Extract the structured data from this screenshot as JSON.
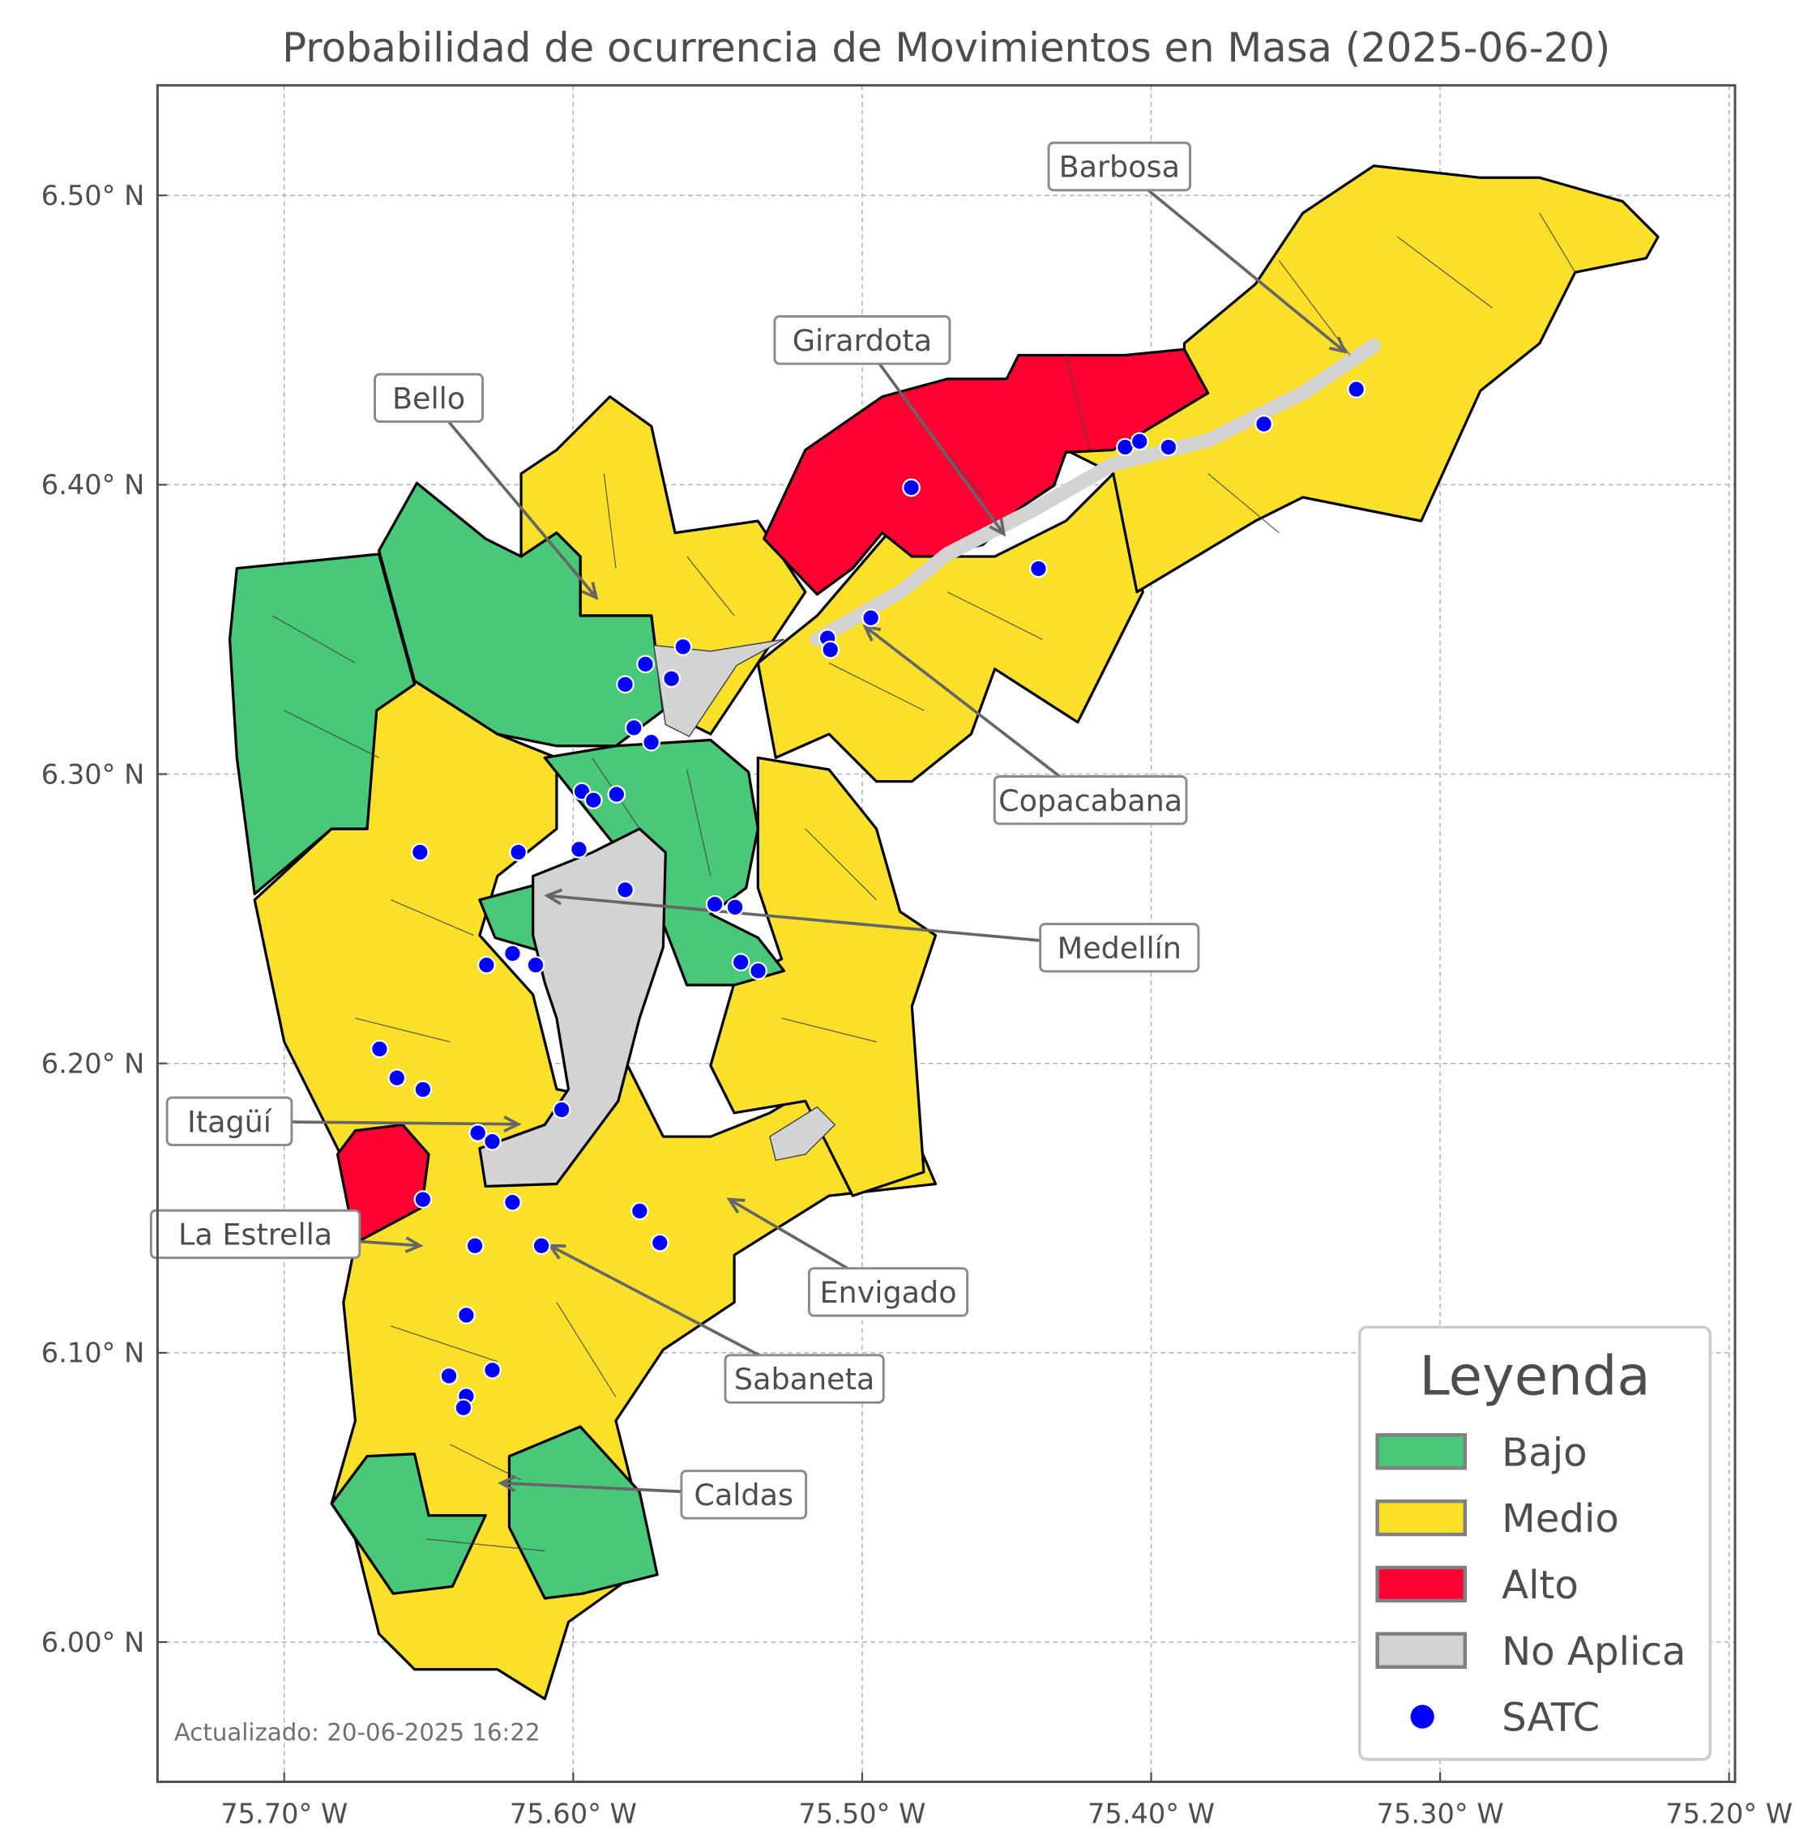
{
  "title": "Probabilidad de ocurrencia de Movimientos en Masa (2025-06-20)",
  "updated_note": "Actualizado: 20-06-2025 16:22",
  "axes": {
    "x_ticks": [
      {
        "value": -75.7,
        "label": "75.70° W"
      },
      {
        "value": -75.6,
        "label": "75.60° W"
      },
      {
        "value": -75.5,
        "label": "75.50° W"
      },
      {
        "value": -75.4,
        "label": "75.40° W"
      },
      {
        "value": -75.3,
        "label": "75.30° W"
      },
      {
        "value": -75.2,
        "label": "75.20° W"
      }
    ],
    "y_ticks": [
      {
        "value": 6.5,
        "label": "6.50° N"
      },
      {
        "value": 6.4,
        "label": "6.40° N"
      },
      {
        "value": 6.3,
        "label": "6.30° N"
      },
      {
        "value": 6.2,
        "label": "6.20° N"
      },
      {
        "value": 6.1,
        "label": "6.10° N"
      },
      {
        "value": 6.0,
        "label": "6.00° N"
      }
    ],
    "xlim": [
      -75.744,
      -75.198
    ],
    "ylim": [
      5.953,
      6.539
    ],
    "grid": true
  },
  "legend": {
    "title": "Leyenda",
    "placement": "bottom-right",
    "items": [
      {
        "label": "Bajo",
        "color": "#48c878",
        "kind": "patch"
      },
      {
        "label": "Medio",
        "color": "#fbe02a",
        "kind": "patch"
      },
      {
        "label": "Alto",
        "color": "#ff0033",
        "kind": "patch"
      },
      {
        "label": "No Aplica",
        "color": "#d3d3d3",
        "kind": "patch"
      },
      {
        "label": "SATC",
        "color": "#0000ff",
        "kind": "point"
      }
    ]
  },
  "municipalities": [
    {
      "name": "Barbosa",
      "label_at": [
        -75.411,
        6.51
      ],
      "point": [
        -75.333,
        6.446
      ]
    },
    {
      "name": "Girardota",
      "label_at": [
        -75.5,
        6.45
      ],
      "point": [
        -75.451,
        6.383
      ]
    },
    {
      "name": "Bello",
      "label_at": [
        -75.65,
        6.43
      ],
      "point": [
        -75.592,
        6.361
      ]
    },
    {
      "name": "Copacabana",
      "label_at": [
        -75.421,
        6.291
      ],
      "point": [
        -75.499,
        6.351
      ]
    },
    {
      "name": "Medellín",
      "label_at": [
        -75.411,
        6.24
      ],
      "point": [
        -75.609,
        6.258
      ]
    },
    {
      "name": "Itagüí",
      "label_at": [
        -75.719,
        6.18
      ],
      "point": [
        -75.619,
        6.179
      ]
    },
    {
      "name": "La Estrella",
      "label_at": [
        -75.71,
        6.141
      ],
      "point": [
        -75.653,
        6.137
      ]
    },
    {
      "name": "Envigado",
      "label_at": [
        -75.491,
        6.121
      ],
      "point": [
        -75.546,
        6.153
      ]
    },
    {
      "name": "Sabaneta",
      "label_at": [
        -75.52,
        6.091
      ],
      "point": [
        -75.608,
        6.137
      ]
    },
    {
      "name": "Caldas",
      "label_at": [
        -75.541,
        6.051
      ],
      "point": [
        -75.625,
        6.055
      ]
    }
  ],
  "satc_points": [
    [
      -75.483,
      6.399
    ],
    [
      -75.409,
      6.413
    ],
    [
      -75.404,
      6.415
    ],
    [
      -75.394,
      6.413
    ],
    [
      -75.361,
      6.421
    ],
    [
      -75.329,
      6.433
    ],
    [
      -75.439,
      6.371
    ],
    [
      -75.497,
      6.354
    ],
    [
      -75.512,
      6.347
    ],
    [
      -75.511,
      6.343
    ],
    [
      -75.562,
      6.344
    ],
    [
      -75.575,
      6.338
    ],
    [
      -75.582,
      6.331
    ],
    [
      -75.566,
      6.333
    ],
    [
      -75.579,
      6.316
    ],
    [
      -75.573,
      6.311
    ],
    [
      -75.597,
      6.294
    ],
    [
      -75.593,
      6.291
    ],
    [
      -75.585,
      6.293
    ],
    [
      -75.653,
      6.273
    ],
    [
      -75.619,
      6.273
    ],
    [
      -75.598,
      6.274
    ],
    [
      -75.582,
      6.26
    ],
    [
      -75.551,
      6.255
    ],
    [
      -75.544,
      6.254
    ],
    [
      -75.542,
      6.235
    ],
    [
      -75.536,
      6.232
    ],
    [
      -75.621,
      6.238
    ],
    [
      -75.63,
      6.234
    ],
    [
      -75.613,
      6.234
    ],
    [
      -75.667,
      6.205
    ],
    [
      -75.661,
      6.195
    ],
    [
      -75.652,
      6.191
    ],
    [
      -75.604,
      6.184
    ],
    [
      -75.633,
      6.176
    ],
    [
      -75.628,
      6.173
    ],
    [
      -75.652,
      6.153
    ],
    [
      -75.621,
      6.152
    ],
    [
      -75.577,
      6.149
    ],
    [
      -75.57,
      6.138
    ],
    [
      -75.634,
      6.137
    ],
    [
      -75.611,
      6.137
    ],
    [
      -75.637,
      6.113
    ],
    [
      -75.643,
      6.092
    ],
    [
      -75.628,
      6.094
    ],
    [
      -75.637,
      6.085
    ],
    [
      -75.638,
      6.081
    ]
  ]
}
